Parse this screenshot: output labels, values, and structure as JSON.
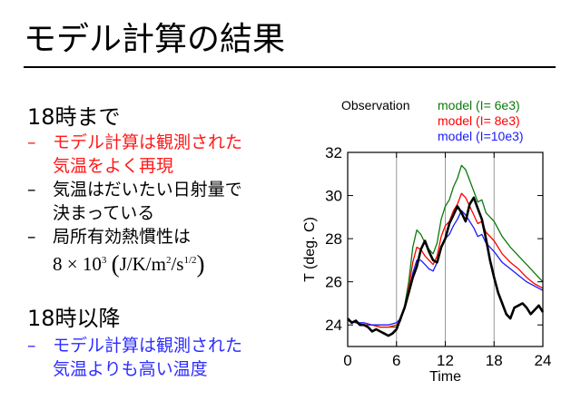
{
  "slide": {
    "title": "モデル計算の結果"
  },
  "section1": {
    "heading": "18時まで",
    "bullet1": {
      "dash": "–",
      "line1": "モデル計算は観測された",
      "line2": "気温をよく再現"
    },
    "bullet2": {
      "dash": "–",
      "line1": "気温はだいたい日射量で",
      "line2": "決まっている"
    },
    "bullet3": {
      "dash": "–",
      "line1": "局所有効熱慣性は"
    },
    "formula": {
      "coef": "8 × 10",
      "exp": "3",
      "unit_a": "J/K/m",
      "unit_exp1": "2",
      "unit_b": "/s",
      "unit_exp2": "1/2"
    }
  },
  "section2": {
    "heading": "18時以降",
    "bullet1": {
      "dash": "–",
      "line1": "モデル計算は観測された",
      "line2": "気温よりも高い温度"
    }
  },
  "colors": {
    "red_text": "#ff1a1a",
    "blue_text": "#2d2dff",
    "observation": "#000000",
    "model_6e3": "#0a7a0a",
    "model_8e3": "#ff0000",
    "model_10e3": "#1a1aff",
    "vertical_lines": "#999999"
  },
  "chart_data": {
    "type": "line",
    "xlabel": "Time",
    "ylabel": "T (deg. C)",
    "xlim": [
      0,
      24
    ],
    "ylim": [
      23,
      32
    ],
    "xticks": [
      0,
      6,
      12,
      18,
      24
    ],
    "yticks": [
      24,
      26,
      28,
      30,
      32
    ],
    "vertical_lines": [
      6,
      12,
      18
    ],
    "legend": [
      "Observation",
      "model  (I=  6e3)",
      "model  (I=  8e3)",
      "model   (I=10e3)"
    ],
    "legend_position": "top",
    "series": [
      {
        "name": "Observation",
        "x": [
          0,
          0.5,
          1,
          1.5,
          2,
          2.5,
          3,
          3.5,
          4,
          4.5,
          5,
          5.5,
          6,
          6.5,
          7,
          7.5,
          8,
          8.5,
          9,
          9.5,
          10,
          10.5,
          11,
          11.5,
          12,
          12.5,
          13,
          13.5,
          14,
          14.5,
          15,
          15.5,
          16,
          16.5,
          17,
          17.5,
          18,
          18.5,
          19,
          19.5,
          20,
          20.5,
          21,
          21.5,
          22,
          22.5,
          23,
          23.5,
          24
        ],
        "y": [
          24.3,
          24.1,
          24.2,
          24.0,
          24.0,
          23.9,
          23.7,
          23.8,
          23.7,
          23.6,
          23.5,
          23.6,
          23.8,
          24.3,
          24.8,
          25.5,
          26.2,
          26.7,
          27.5,
          27.9,
          27.4,
          27.0,
          26.9,
          27.6,
          28.0,
          28.7,
          29.1,
          29.5,
          29.2,
          28.8,
          29.6,
          29.9,
          29.4,
          28.9,
          28.0,
          27.0,
          26.2,
          25.5,
          25.0,
          24.5,
          24.3,
          24.8,
          24.9,
          25.0,
          24.8,
          24.5,
          24.7,
          24.9,
          24.6
        ]
      },
      {
        "name": "model  (I=  6e3)",
        "x": [
          0,
          1,
          2,
          3,
          4,
          5,
          6,
          6.5,
          7,
          7.5,
          8,
          8.5,
          9,
          9.5,
          10,
          10.5,
          11,
          11.5,
          12,
          12.5,
          13,
          13.5,
          14,
          14.5,
          15,
          15.5,
          16,
          16.5,
          17,
          18,
          19,
          20,
          21,
          22,
          23,
          24
        ],
        "y": [
          24.2,
          24.1,
          24.0,
          24.0,
          23.9,
          23.9,
          23.9,
          24.2,
          24.9,
          26.0,
          27.6,
          28.4,
          28.2,
          27.8,
          27.5,
          27.3,
          27.8,
          28.9,
          29.5,
          29.8,
          30.4,
          30.8,
          31.4,
          31.2,
          30.7,
          30.2,
          29.7,
          29.8,
          29.2,
          28.8,
          28.1,
          27.6,
          27.2,
          26.8,
          26.4,
          26.0
        ]
      },
      {
        "name": "model  (I=  8e3)",
        "x": [
          0,
          1,
          2,
          3,
          4,
          5,
          6,
          6.5,
          7,
          7.5,
          8,
          8.5,
          9,
          9.5,
          10,
          10.5,
          11,
          11.5,
          12,
          12.5,
          13,
          13.5,
          14,
          14.5,
          15,
          15.5,
          16,
          16.5,
          17,
          18,
          19,
          20,
          21,
          22,
          23,
          24
        ],
        "y": [
          24.2,
          24.1,
          24.0,
          24.0,
          23.9,
          23.9,
          24.0,
          24.2,
          24.8,
          25.7,
          26.9,
          27.6,
          27.5,
          27.2,
          27.0,
          26.8,
          27.2,
          28.1,
          28.6,
          28.8,
          29.3,
          29.6,
          30.1,
          29.9,
          29.5,
          29.1,
          28.7,
          28.8,
          28.3,
          27.9,
          27.3,
          26.9,
          26.6,
          26.2,
          25.9,
          25.7
        ]
      },
      {
        "name": "model   (I=10e3)",
        "x": [
          0,
          1,
          2,
          3,
          4,
          5,
          6,
          6.5,
          7,
          7.5,
          8,
          8.5,
          9,
          9.5,
          10,
          10.5,
          11,
          11.5,
          12,
          12.5,
          13,
          13.5,
          14,
          14.5,
          15,
          15.5,
          16,
          16.5,
          17,
          18,
          19,
          20,
          21,
          22,
          23,
          24
        ],
        "y": [
          24.2,
          24.1,
          24.1,
          24.0,
          24.0,
          24.0,
          24.1,
          24.3,
          24.8,
          25.5,
          26.4,
          27.0,
          27.0,
          26.8,
          26.6,
          26.5,
          26.9,
          27.6,
          28.0,
          28.2,
          28.6,
          28.9,
          29.3,
          29.1,
          28.8,
          28.5,
          28.1,
          28.2,
          27.8,
          27.4,
          26.9,
          26.6,
          26.3,
          26.0,
          25.8,
          25.6
        ]
      }
    ]
  }
}
